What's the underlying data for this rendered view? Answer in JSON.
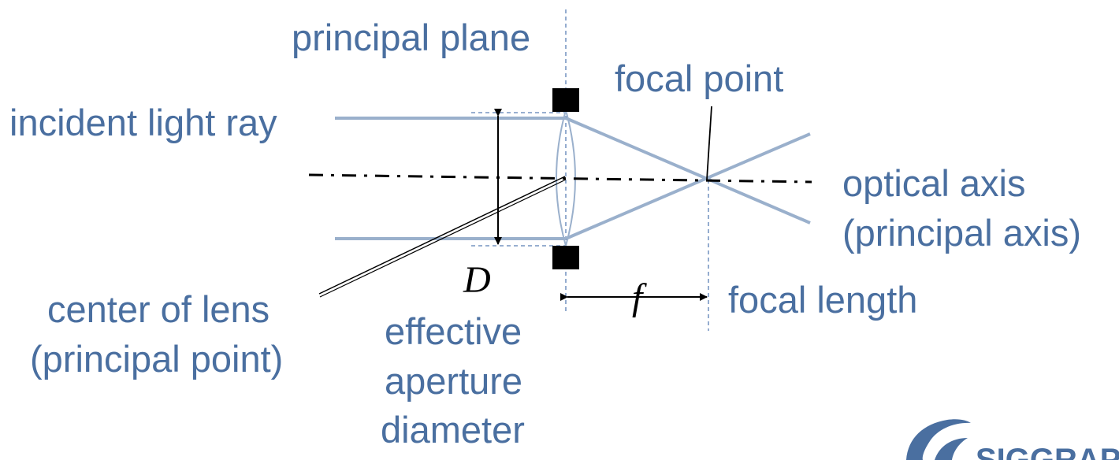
{
  "labels": {
    "principal_plane": "principal plane",
    "focal_point": "focal point",
    "incident_light_ray": "incident light ray",
    "optical_axis_line1": "optical axis",
    "optical_axis_line2": "(principal axis)",
    "aperture_symbol": "D",
    "focal_symbol": "f",
    "focal_length": "focal length",
    "center_of_lens_line1": "center of lens",
    "center_of_lens_line2": "(principal point)",
    "effective_line1": "effective",
    "effective_line2": "aperture",
    "effective_line3": "diameter"
  },
  "logo": {
    "text": "SIGGRAPH"
  },
  "colors": {
    "label_blue": "#4a6fa0",
    "ray_blue": "#9ab0cc",
    "guide_blue": "#5b7fb5",
    "black": "#000000"
  }
}
